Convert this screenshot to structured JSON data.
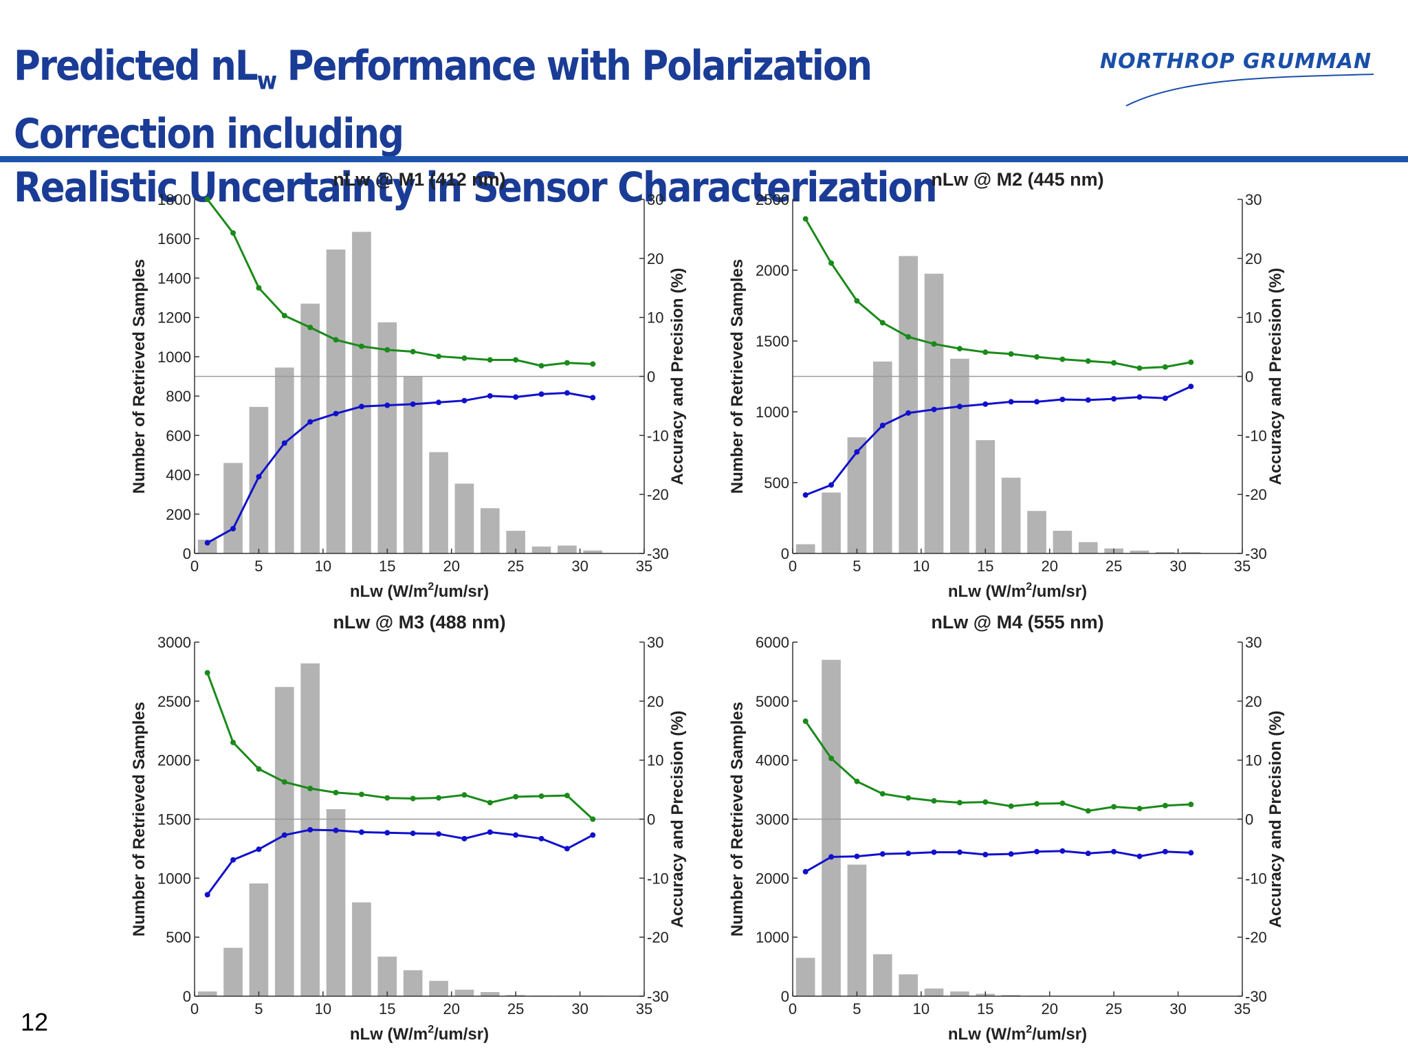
{
  "slide": {
    "title_line1_pre": "Predicted nL",
    "title_sub": "w",
    "title_line1_post": " Performance with Polarization Correction including",
    "title_line2": "Realistic Uncertainty in Sensor Characterization",
    "logo_text": "NORTHROP GRUMMAN",
    "slide_number": "12",
    "colors": {
      "title": "#1a3c96",
      "rule": "#1d54ad",
      "bars": "#b3b3b3",
      "accuracy": "#1a8a1a",
      "precision": "#1010cc"
    }
  },
  "chart_data": [
    {
      "type": "bar",
      "title": "nLw @ M1 (412 nm)",
      "xlabel_pre": "nLw (W/m",
      "xlabel_sup": "2",
      "xlabel_post": "/um/sr)",
      "ylabel": "Number of Retrieved Samples",
      "y2label": "Accuracy and Precision (%)",
      "xlim": [
        0,
        35
      ],
      "xticks": [
        0,
        5,
        10,
        15,
        20,
        25,
        30,
        35
      ],
      "ylim": [
        0,
        1800
      ],
      "yticks": [
        0,
        200,
        400,
        600,
        800,
        1000,
        1200,
        1400,
        1600,
        1800
      ],
      "y2lim": [
        -30,
        30
      ],
      "y2ticks": [
        30,
        20,
        10,
        0,
        -10,
        -20,
        -30
      ],
      "x": [
        1,
        3,
        5,
        7,
        9,
        11,
        13,
        15,
        17,
        19,
        21,
        23,
        25,
        27,
        29,
        31
      ],
      "bars": [
        70,
        460,
        745,
        945,
        1270,
        1545,
        1635,
        1175,
        900,
        515,
        355,
        230,
        115,
        35,
        40,
        15
      ],
      "accuracy": [
        30,
        24.3,
        15,
        10.3,
        8.3,
        6.2,
        5.1,
        4.5,
        4.2,
        3.4,
        3.1,
        2.8,
        2.8,
        1.8,
        2.3,
        2.1
      ],
      "precision": [
        -28.2,
        -25.8,
        -17,
        -11.3,
        -7.7,
        -6.3,
        -5.1,
        -4.9,
        -4.7,
        -4.4,
        -4.1,
        -3.3,
        -3.5,
        -3,
        -2.8,
        -3.6
      ]
    },
    {
      "type": "bar",
      "title": "nLw @ M2 (445 nm)",
      "xlabel_pre": "nLw (W/m",
      "xlabel_sup": "2",
      "xlabel_post": "/um/sr)",
      "ylabel": "Number of Retrieved Samples",
      "y2label": "Accuracy and Precision (%)",
      "xlim": [
        0,
        35
      ],
      "xticks": [
        0,
        5,
        10,
        15,
        20,
        25,
        30,
        35
      ],
      "ylim": [
        0,
        2500
      ],
      "yticks": [
        0,
        500,
        1000,
        1500,
        2000,
        2500
      ],
      "y2lim": [
        -30,
        30
      ],
      "y2ticks": [
        30,
        20,
        10,
        0,
        -10,
        -20,
        -30
      ],
      "x": [
        1,
        3,
        5,
        7,
        9,
        11,
        13,
        15,
        17,
        19,
        21,
        23,
        25,
        27,
        29,
        31
      ],
      "bars": [
        65,
        430,
        820,
        1355,
        2100,
        1975,
        1375,
        800,
        535,
        300,
        160,
        80,
        35,
        20,
        10,
        10
      ],
      "accuracy": [
        26.7,
        19.2,
        12.8,
        9.1,
        6.7,
        5.5,
        4.7,
        4.1,
        3.8,
        3.3,
        2.9,
        2.6,
        2.3,
        1.4,
        1.6,
        2.4
      ],
      "precision": [
        -20.1,
        -18.4,
        -12.8,
        -8.3,
        -6.2,
        -5.6,
        -5.1,
        -4.7,
        -4.3,
        -4.3,
        -3.9,
        -4.0,
        -3.8,
        -3.5,
        -3.7,
        -1.7
      ]
    },
    {
      "type": "bar",
      "title": "nLw @ M3 (488 nm)",
      "xlabel_pre": "nLw (W/m",
      "xlabel_sup": "2",
      "xlabel_post": "/um/sr)",
      "ylabel": "Number of Retrieved Samples",
      "y2label": "Accuracy and Precision (%)",
      "xlim": [
        0,
        35
      ],
      "xticks": [
        0,
        5,
        10,
        15,
        20,
        25,
        30,
        35
      ],
      "ylim": [
        0,
        3000
      ],
      "yticks": [
        0,
        500,
        1000,
        1500,
        2000,
        2500,
        3000
      ],
      "y2lim": [
        -30,
        30
      ],
      "y2ticks": [
        30,
        20,
        10,
        0,
        -10,
        -20,
        -30
      ],
      "x": [
        1,
        3,
        5,
        7,
        9,
        11,
        13,
        15,
        17,
        19,
        21,
        23,
        25,
        27,
        29,
        31
      ],
      "bars": [
        40,
        410,
        955,
        2620,
        2820,
        1585,
        795,
        335,
        220,
        130,
        55,
        35,
        10,
        5,
        5,
        5
      ],
      "accuracy": [
        24.8,
        13,
        8.5,
        6.3,
        5.2,
        4.5,
        4.2,
        3.6,
        3.5,
        3.6,
        4.1,
        2.8,
        3.8,
        3.9,
        4,
        0
      ],
      "precision": [
        -12.8,
        -6.9,
        -5.1,
        -2.7,
        -1.8,
        -1.9,
        -2.2,
        -2.3,
        -2.4,
        -2.5,
        -3.3,
        -2.2,
        -2.7,
        -3.3,
        -5,
        -2.7
      ]
    },
    {
      "type": "bar",
      "title": "nLw @ M4 (555 nm)",
      "xlabel_pre": "nLw (W/m",
      "xlabel_sup": "2",
      "xlabel_post": "/um/sr)",
      "ylabel": "Number of Retrieved Samples",
      "y2label": "Accuracy and Precision (%)",
      "xlim": [
        0,
        35
      ],
      "xticks": [
        0,
        5,
        10,
        15,
        20,
        25,
        30,
        35
      ],
      "ylim": [
        0,
        6000
      ],
      "yticks": [
        0,
        1000,
        2000,
        3000,
        4000,
        5000,
        6000
      ],
      "y2lim": [
        -30,
        30
      ],
      "y2ticks": [
        30,
        20,
        10,
        0,
        -10,
        -20,
        -30
      ],
      "x": [
        1,
        3,
        5,
        7,
        9,
        11,
        13,
        15,
        17,
        19,
        21,
        23,
        25,
        27,
        29,
        31
      ],
      "bars": [
        650,
        5700,
        2230,
        710,
        370,
        130,
        80,
        40,
        20,
        10,
        5,
        5,
        5,
        5,
        5,
        5
      ],
      "accuracy": [
        16.6,
        10.3,
        6.4,
        4.3,
        3.6,
        3.1,
        2.8,
        2.9,
        2.2,
        2.6,
        2.7,
        1.4,
        2.1,
        1.8,
        2.3,
        2.5
      ],
      "precision": [
        -8.9,
        -6.4,
        -6.3,
        -5.9,
        -5.8,
        -5.6,
        -5.6,
        -6.0,
        -5.9,
        -5.5,
        -5.4,
        -5.8,
        -5.5,
        -6.3,
        -5.5,
        -5.7
      ]
    }
  ]
}
